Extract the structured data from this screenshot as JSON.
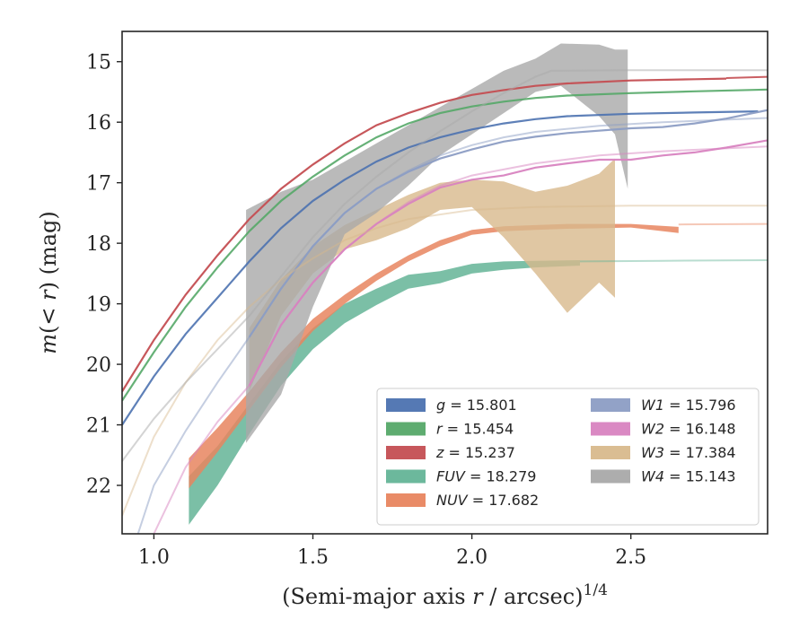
{
  "chart_data": {
    "type": "line",
    "xlabel": "(Semi-major axis r / arcsec)^{1/4}",
    "ylabel": "m(< r) (mag)",
    "xlim": [
      0.9,
      2.93
    ],
    "ylim": [
      22.8,
      14.5
    ],
    "y_inverted": true,
    "xticks": [
      1.0,
      1.5,
      2.0,
      2.5
    ],
    "yticks": [
      15,
      16,
      17,
      18,
      19,
      20,
      21,
      22
    ],
    "grid": false,
    "legend_position": "lower-right",
    "series": [
      {
        "key": "g",
        "name": "g = 15.801",
        "label_var": "g",
        "label_val": "15.801",
        "color": "#4c72b0",
        "alpha": 0.9,
        "extrap_alpha": 0.9,
        "points": [
          [
            0.9,
            21.0
          ],
          [
            1.0,
            20.2
          ],
          [
            1.1,
            19.5
          ],
          [
            1.2,
            18.9
          ],
          [
            1.3,
            18.3
          ],
          [
            1.4,
            17.75
          ],
          [
            1.5,
            17.3
          ],
          [
            1.6,
            16.95
          ],
          [
            1.7,
            16.65
          ],
          [
            1.8,
            16.42
          ],
          [
            1.9,
            16.25
          ],
          [
            2.0,
            16.12
          ],
          [
            2.1,
            16.02
          ],
          [
            2.2,
            15.95
          ],
          [
            2.3,
            15.9
          ],
          [
            2.5,
            15.86
          ],
          [
            2.7,
            15.84
          ],
          [
            2.9,
            15.82
          ]
        ],
        "band": [],
        "extrap": []
      },
      {
        "key": "r",
        "name": "r = 15.454",
        "label_var": "r",
        "label_val": "15.454",
        "color": "#55a868",
        "alpha": 0.9,
        "extrap_alpha": 0.9,
        "points": [
          [
            0.9,
            20.6
          ],
          [
            1.0,
            19.8
          ],
          [
            1.1,
            19.05
          ],
          [
            1.2,
            18.4
          ],
          [
            1.3,
            17.8
          ],
          [
            1.4,
            17.3
          ],
          [
            1.5,
            16.9
          ],
          [
            1.6,
            16.55
          ],
          [
            1.7,
            16.25
          ],
          [
            1.8,
            16.02
          ],
          [
            1.9,
            15.85
          ],
          [
            2.0,
            15.74
          ],
          [
            2.1,
            15.66
          ],
          [
            2.2,
            15.6
          ],
          [
            2.3,
            15.56
          ],
          [
            2.5,
            15.52
          ],
          [
            2.7,
            15.49
          ],
          [
            2.93,
            15.46
          ]
        ],
        "band": [],
        "extrap": []
      },
      {
        "key": "z",
        "name": "z = 15.237",
        "label_var": "z",
        "label_val": "15.237",
        "color": "#c44e52",
        "alpha": 0.95,
        "extrap_alpha": 0.9,
        "points": [
          [
            0.9,
            20.45
          ],
          [
            1.0,
            19.6
          ],
          [
            1.1,
            18.85
          ],
          [
            1.2,
            18.2
          ],
          [
            1.3,
            17.6
          ],
          [
            1.4,
            17.1
          ],
          [
            1.5,
            16.7
          ],
          [
            1.6,
            16.35
          ],
          [
            1.7,
            16.05
          ],
          [
            1.8,
            15.85
          ],
          [
            1.9,
            15.68
          ],
          [
            2.0,
            15.55
          ],
          [
            2.1,
            15.47
          ],
          [
            2.2,
            15.4
          ],
          [
            2.3,
            15.36
          ],
          [
            2.5,
            15.31
          ],
          [
            2.7,
            15.29
          ],
          [
            2.8,
            15.28
          ]
        ],
        "band": [],
        "extrap": [
          [
            2.8,
            15.27
          ],
          [
            2.93,
            15.25
          ]
        ]
      },
      {
        "key": "FUV",
        "name": "FUV = 18.279",
        "label_var": "FUV",
        "label_val": "18.279",
        "color": "#64b497",
        "alpha": 0.85,
        "extrap_alpha": 0.45,
        "points": [],
        "band": [
          [
            1.11,
            21.85,
            22.65
          ],
          [
            1.2,
            21.35,
            22.0
          ],
          [
            1.3,
            20.65,
            21.15
          ],
          [
            1.4,
            19.95,
            20.35
          ],
          [
            1.5,
            19.4,
            19.75
          ],
          [
            1.6,
            19.0,
            19.32
          ],
          [
            1.7,
            18.75,
            19.02
          ],
          [
            1.8,
            18.52,
            18.75
          ],
          [
            1.9,
            18.46,
            18.66
          ],
          [
            2.0,
            18.34,
            18.5
          ],
          [
            2.1,
            18.3,
            18.44
          ],
          [
            2.2,
            18.29,
            18.4
          ],
          [
            2.34,
            18.28,
            18.37
          ]
        ],
        "extrap": [
          [
            2.34,
            18.3
          ],
          [
            2.6,
            18.29
          ],
          [
            2.93,
            18.28
          ]
        ]
      },
      {
        "key": "NUV",
        "name": "NUV = 17.682",
        "label_var": "NUV",
        "label_val": "17.682",
        "color": "#e8855f",
        "alpha": 0.85,
        "extrap_alpha": 0.45,
        "points": [],
        "band": [
          [
            1.11,
            21.55,
            22.05
          ],
          [
            1.2,
            21.05,
            21.45
          ],
          [
            1.3,
            20.45,
            20.75
          ],
          [
            1.4,
            19.8,
            20.05
          ],
          [
            1.5,
            19.25,
            19.45
          ],
          [
            1.6,
            18.85,
            19.0
          ],
          [
            1.7,
            18.5,
            18.62
          ],
          [
            1.8,
            18.2,
            18.3
          ],
          [
            1.9,
            17.95,
            18.05
          ],
          [
            2.0,
            17.78,
            17.86
          ],
          [
            2.1,
            17.72,
            17.8
          ],
          [
            2.2,
            17.7,
            17.78
          ],
          [
            2.3,
            17.68,
            17.76
          ],
          [
            2.5,
            17.68,
            17.74
          ],
          [
            2.65,
            17.73,
            17.83
          ]
        ],
        "extrap": [
          [
            2.65,
            17.69
          ],
          [
            2.93,
            17.68
          ]
        ]
      },
      {
        "key": "W1",
        "name": "W1 = 15.796",
        "label_var": "W1",
        "label_val": "15.796",
        "color": "#8c9dc4",
        "alpha": 0.95,
        "extrap_alpha": 0.5,
        "points": [
          [
            1.3,
            19.55
          ],
          [
            1.4,
            18.75
          ],
          [
            1.5,
            18.05
          ],
          [
            1.6,
            17.5
          ],
          [
            1.7,
            17.1
          ],
          [
            1.8,
            16.82
          ],
          [
            1.9,
            16.6
          ],
          [
            2.0,
            16.45
          ],
          [
            2.1,
            16.32
          ],
          [
            2.2,
            16.24
          ],
          [
            2.3,
            16.18
          ],
          [
            2.5,
            16.1
          ],
          [
            2.6,
            16.08
          ],
          [
            2.7,
            16.02
          ],
          [
            2.8,
            15.94
          ],
          [
            2.93,
            15.8
          ]
        ],
        "band": [],
        "extrap": [
          [
            0.95,
            22.8
          ],
          [
            1.0,
            22.0
          ],
          [
            1.1,
            21.1
          ],
          [
            1.2,
            20.3
          ],
          [
            1.3,
            19.55
          ],
          [
            1.4,
            18.75
          ],
          [
            1.5,
            18.05
          ],
          [
            1.6,
            17.5
          ],
          [
            1.7,
            17.1
          ],
          [
            1.8,
            16.8
          ],
          [
            1.9,
            16.55
          ],
          [
            2.0,
            16.38
          ],
          [
            2.1,
            16.25
          ],
          [
            2.2,
            16.16
          ],
          [
            2.4,
            16.06
          ],
          [
            2.6,
            16.0
          ],
          [
            2.93,
            15.93
          ]
        ]
      },
      {
        "key": "W2",
        "name": "W2 = 16.148",
        "label_var": "W2",
        "label_val": "16.148",
        "color": "#d883c0",
        "alpha": 0.95,
        "extrap_alpha": 0.5,
        "points": [
          [
            1.3,
            20.35
          ],
          [
            1.4,
            19.35
          ],
          [
            1.5,
            18.65
          ],
          [
            1.6,
            18.1
          ],
          [
            1.7,
            17.68
          ],
          [
            1.8,
            17.35
          ],
          [
            1.9,
            17.08
          ],
          [
            2.0,
            16.95
          ],
          [
            2.1,
            16.88
          ],
          [
            2.2,
            16.75
          ],
          [
            2.3,
            16.68
          ],
          [
            2.4,
            16.62
          ],
          [
            2.5,
            16.62
          ],
          [
            2.6,
            16.55
          ],
          [
            2.7,
            16.5
          ],
          [
            2.8,
            16.42
          ],
          [
            2.93,
            16.3
          ]
        ],
        "band": [],
        "extrap": [
          [
            1.0,
            22.8
          ],
          [
            1.1,
            21.7
          ],
          [
            1.2,
            20.95
          ],
          [
            1.3,
            20.35
          ],
          [
            1.4,
            19.35
          ],
          [
            1.5,
            18.65
          ],
          [
            1.6,
            18.1
          ],
          [
            1.7,
            17.68
          ],
          [
            1.8,
            17.32
          ],
          [
            1.9,
            17.05
          ],
          [
            2.0,
            16.88
          ],
          [
            2.2,
            16.68
          ],
          [
            2.4,
            16.55
          ],
          [
            2.6,
            16.48
          ],
          [
            2.93,
            16.4
          ]
        ]
      },
      {
        "key": "W3",
        "name": "W3 = 17.384",
        "label_var": "W3",
        "label_val": "17.384",
        "color": "#d8b98c",
        "alpha": 0.8,
        "extrap_alpha": 0.45,
        "points": [],
        "band": [
          [
            1.3,
            19.4,
            20.45
          ],
          [
            1.4,
            18.6,
            19.2
          ],
          [
            1.5,
            18.05,
            18.5
          ],
          [
            1.6,
            17.7,
            18.1
          ],
          [
            1.7,
            17.45,
            17.95
          ],
          [
            1.8,
            17.2,
            17.75
          ],
          [
            1.9,
            17.0,
            17.45
          ],
          [
            2.0,
            16.95,
            17.4
          ],
          [
            2.1,
            16.98,
            17.9
          ],
          [
            2.2,
            17.15,
            18.5
          ],
          [
            2.3,
            17.05,
            19.15
          ],
          [
            2.4,
            16.85,
            18.65
          ],
          [
            2.45,
            16.6,
            18.9
          ]
        ],
        "extrap": [
          [
            0.9,
            22.5
          ],
          [
            1.0,
            21.2
          ],
          [
            1.1,
            20.3
          ],
          [
            1.2,
            19.6
          ],
          [
            1.3,
            19.05
          ],
          [
            1.4,
            18.6
          ],
          [
            1.5,
            18.25
          ],
          [
            1.6,
            17.95
          ],
          [
            1.7,
            17.75
          ],
          [
            1.8,
            17.6
          ],
          [
            2.0,
            17.45
          ],
          [
            2.2,
            17.4
          ],
          [
            2.5,
            17.38
          ],
          [
            2.93,
            17.38
          ]
        ]
      },
      {
        "key": "W4",
        "name": "W4 = 15.143",
        "label_var": "W4",
        "label_val": "15.143",
        "color": "#a9a9a9",
        "alpha": 0.8,
        "extrap_alpha": 0.5,
        "points": [],
        "band": [
          [
            1.29,
            17.45,
            21.3
          ],
          [
            1.4,
            17.15,
            20.5
          ],
          [
            1.5,
            16.95,
            19.05
          ],
          [
            1.6,
            16.65,
            17.85
          ],
          [
            1.7,
            16.35,
            17.5
          ],
          [
            1.8,
            16.05,
            17.05
          ],
          [
            1.9,
            15.75,
            16.55
          ],
          [
            2.0,
            15.45,
            16.2
          ],
          [
            2.1,
            15.15,
            15.85
          ],
          [
            2.2,
            14.95,
            15.5
          ],
          [
            2.28,
            14.7,
            15.4
          ],
          [
            2.4,
            14.72,
            15.9
          ],
          [
            2.45,
            14.8,
            16.2
          ],
          [
            2.49,
            14.8,
            17.1
          ]
        ],
        "extrap": [
          [
            0.9,
            21.6
          ],
          [
            1.0,
            20.9
          ],
          [
            1.1,
            20.3
          ],
          [
            1.2,
            19.75
          ],
          [
            1.3,
            19.2
          ],
          [
            1.4,
            18.55
          ],
          [
            1.5,
            17.9
          ],
          [
            1.6,
            17.35
          ],
          [
            1.7,
            16.9
          ],
          [
            1.8,
            16.5
          ],
          [
            1.9,
            16.15
          ],
          [
            2.0,
            15.82
          ],
          [
            2.1,
            15.52
          ],
          [
            2.2,
            15.25
          ],
          [
            2.25,
            15.15
          ],
          [
            2.5,
            15.14
          ],
          [
            2.93,
            15.14
          ]
        ]
      }
    ],
    "legend_order": [
      "g",
      "r",
      "z",
      "FUV",
      "NUV",
      "W1",
      "W2",
      "W3",
      "W4"
    ]
  }
}
